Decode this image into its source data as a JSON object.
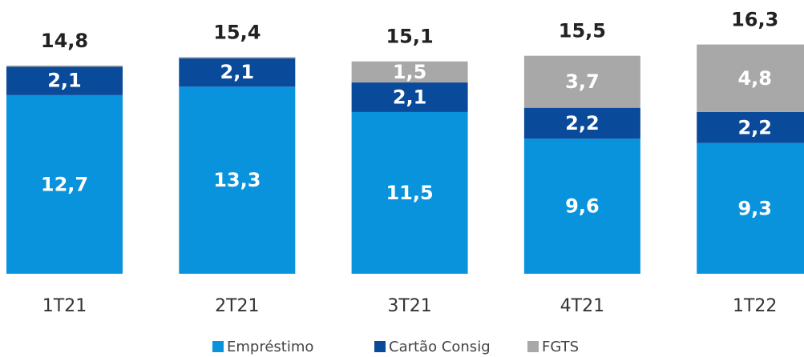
{
  "chart_data": {
    "type": "stacked_bar",
    "categories": [
      "1T21",
      "2T21",
      "3T21",
      "4T21",
      "1T22"
    ],
    "series": [
      {
        "name": "Empréstimo",
        "color": "#0a93dd",
        "values": [
          12.7,
          13.3,
          11.5,
          9.6,
          9.3
        ],
        "value_labels": [
          "12,7",
          "13,3",
          "11,5",
          "9,6",
          "9,3"
        ]
      },
      {
        "name": "Cartão Consig",
        "color": "#0a4a9a",
        "values": [
          2.1,
          2.1,
          2.1,
          2.2,
          2.2
        ],
        "value_labels": [
          "2,1",
          "2,1",
          "2,1",
          "2,2",
          "2,2"
        ]
      },
      {
        "name": "FGTS",
        "color": "#a8a8a8",
        "values": [
          0,
          0,
          1.5,
          3.7,
          4.8
        ],
        "value_labels": [
          null,
          null,
          "1,5",
          "3,7",
          "4,8"
        ]
      }
    ],
    "totals": [
      14.8,
      15.4,
      15.1,
      15.5,
      16.3
    ],
    "total_labels": [
      "14,8",
      "15,4",
      "15,1",
      "15,5",
      "16,3"
    ]
  }
}
